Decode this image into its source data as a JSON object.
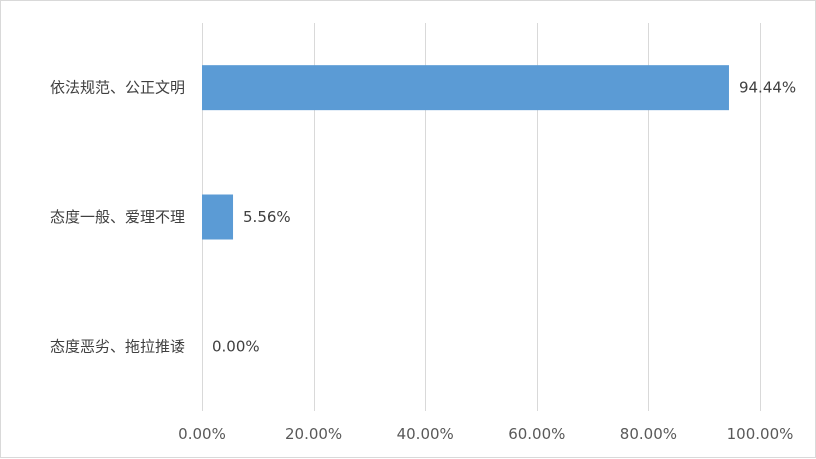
{
  "chart_data": {
    "type": "bar",
    "orientation": "horizontal",
    "categories": [
      "依法规范、公正文明",
      "态度一般、爱理不理",
      "态度恶劣、拖拉推诿"
    ],
    "values": [
      94.44,
      5.56,
      0.0
    ],
    "data_labels": [
      "94.44%",
      "5.56%",
      "0.00%"
    ],
    "xlim": [
      0,
      100
    ],
    "x_ticks": [
      0,
      20,
      40,
      60,
      80,
      100
    ],
    "x_tick_labels": [
      "0.00%",
      "20.00%",
      "40.00%",
      "60.00%",
      "80.00%",
      "100.00%"
    ],
    "grid": "vertical",
    "legend": "none",
    "bar_color": "#5b9bd5",
    "grid_color": "#d9d9d9"
  }
}
